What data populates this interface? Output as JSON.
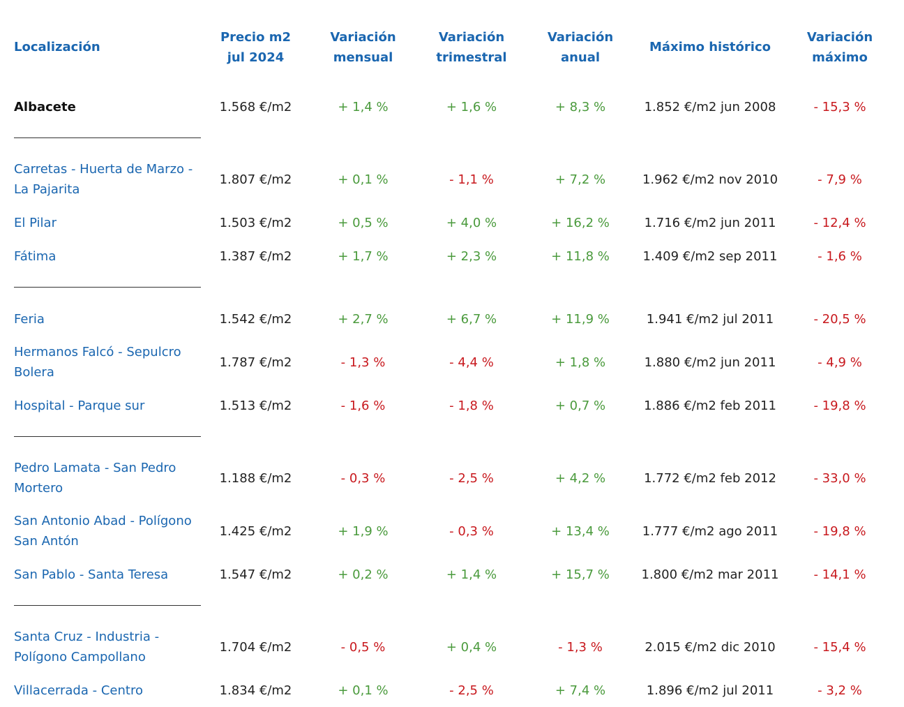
{
  "headers": {
    "loc": "Localización",
    "price_l1": "Precio m2",
    "price_l2": "jul 2024",
    "m_l1": "Variación",
    "m_l2": "mensual",
    "t_l1": "Variación",
    "t_l2": "trimestral",
    "a_l1": "Variación",
    "a_l2": "anual",
    "max": "Máximo histórico",
    "vmax_l1": "Variación",
    "vmax_l2": "máximo"
  },
  "total": {
    "loc": "Albacete",
    "price": "1.568 €/m2",
    "m": "+ 1,4 %",
    "t": "+ 1,6 %",
    "a": "+ 8,3 %",
    "max": "1.852 €/m2 jun 2008",
    "vmax": "- 15,3 %"
  },
  "groups": [
    {
      "rows": [
        {
          "loc_l1": "Carretas - Huerta de Marzo -",
          "loc_l2": "La Pajarita",
          "price": "1.807 €/m2",
          "m": "+ 0,1 %",
          "t": "- 1,1 %",
          "a": "+ 7,2 %",
          "max": "1.962 €/m2 nov 2010",
          "vmax": "- 7,9 %"
        },
        {
          "loc_l1": "El Pilar",
          "loc_l2": "",
          "price": "1.503 €/m2",
          "m": "+ 0,5 %",
          "t": "+ 4,0 %",
          "a": "+ 16,2 %",
          "max": "1.716 €/m2 jun 2011",
          "vmax": "- 12,4 %"
        },
        {
          "loc_l1": "Fátima",
          "loc_l2": "",
          "price": "1.387 €/m2",
          "m": "+ 1,7 %",
          "t": "+ 2,3 %",
          "a": "+ 11,8 %",
          "max": "1.409 €/m2 sep 2011",
          "vmax": "- 1,6 %"
        }
      ]
    },
    {
      "rows": [
        {
          "loc_l1": "Feria",
          "loc_l2": "",
          "price": "1.542 €/m2",
          "m": "+ 2,7 %",
          "t": "+ 6,7 %",
          "a": "+ 11,9 %",
          "max": "1.941 €/m2 jul 2011",
          "vmax": "- 20,5 %"
        },
        {
          "loc_l1": "Hermanos Falcó - Sepulcro",
          "loc_l2": "Bolera",
          "price": "1.787 €/m2",
          "m": "- 1,3 %",
          "t": "- 4,4 %",
          "a": "+ 1,8 %",
          "max": "1.880 €/m2 jun 2011",
          "vmax": "- 4,9 %"
        },
        {
          "loc_l1": "Hospital - Parque sur",
          "loc_l2": "",
          "price": "1.513 €/m2",
          "m": "- 1,6 %",
          "t": "- 1,8 %",
          "a": "+ 0,7 %",
          "max": "1.886 €/m2 feb 2011",
          "vmax": "- 19,8 %"
        }
      ]
    },
    {
      "rows": [
        {
          "loc_l1": "Pedro Lamata - San Pedro",
          "loc_l2": "Mortero",
          "price": "1.188 €/m2",
          "m": "- 0,3 %",
          "t": "- 2,5 %",
          "a": "+ 4,2 %",
          "max": "1.772 €/m2 feb 2012",
          "vmax": "- 33,0 %"
        },
        {
          "loc_l1": "San Antonio Abad - Polígono",
          "loc_l2": "San Antón",
          "price": "1.425 €/m2",
          "m": "+ 1,9 %",
          "t": "- 0,3 %",
          "a": "+ 13,4 %",
          "max": "1.777 €/m2 ago 2011",
          "vmax": "- 19,8 %"
        },
        {
          "loc_l1": "San Pablo - Santa Teresa",
          "loc_l2": "",
          "price": "1.547 €/m2",
          "m": "+ 0,2 %",
          "t": "+ 1,4 %",
          "a": "+ 15,7 %",
          "max": "1.800 €/m2 mar 2011",
          "vmax": "- 14,1 %"
        }
      ]
    },
    {
      "rows": [
        {
          "loc_l1": "Santa Cruz - Industria -",
          "loc_l2": "Polígono Campollano",
          "price": "1.704 €/m2",
          "m": "- 0,5 %",
          "t": "+ 0,4 %",
          "a": "- 1,3 %",
          "max": "2.015 €/m2 dic 2010",
          "vmax": "- 15,4 %"
        },
        {
          "loc_l1": "Villacerrada - Centro",
          "loc_l2": "",
          "price": "1.834 €/m2",
          "m": "+ 0,1 %",
          "t": "- 2,5 %",
          "a": "+ 7,4 %",
          "max": "1.896 €/m2 jul 2011",
          "vmax": "- 3,2 %"
        }
      ]
    }
  ]
}
